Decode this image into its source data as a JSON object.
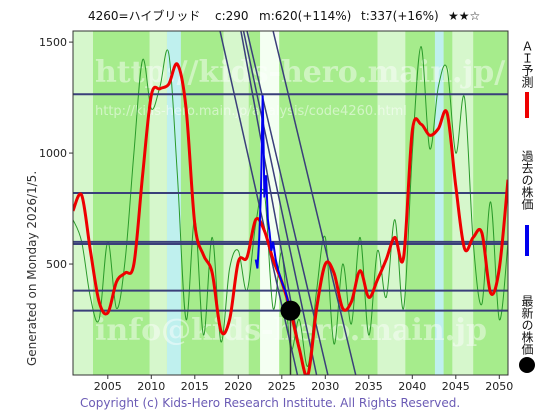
{
  "header": {
    "ticker": "4260=ハイブリッド",
    "current": "c:290",
    "max_info": "m:620(+114%)",
    "target": "t:337(+16%)",
    "rating": "★★☆"
  },
  "side_label": "Generated on Monday 2026/1/5.",
  "copyright": "Copyright (c) Kids-Hero Research Institute. All Rights Reserved.",
  "watermark": {
    "url": "http://kids-hero.main.jp/",
    "sub_url": "http://kids-hero.main.jp/analysis/code4260.html",
    "email": "info@kids-hero.main.jp"
  },
  "legend": [
    {
      "label": "ＡＩ予測",
      "color": "#ee0000"
    },
    {
      "label": "過去の株価",
      "color": "#0000ee"
    },
    {
      "label": "最新の株価",
      "color": "#000000"
    }
  ],
  "colors": {
    "plot_bg": "#a6ec8c",
    "band_light": "#d6f7cc",
    "band_cyan": "#bff0ee",
    "band_white": "#f4fff2",
    "ai_line": "#ee0000",
    "past_line": "#0000ee",
    "trend_lines": "#3a3f7a",
    "horizontal_lines": "#3a3f7a",
    "green_line": "#2a9a2a"
  },
  "chart_data": {
    "type": "line",
    "xlim": [
      2001,
      2051
    ],
    "ylim": [
      0,
      1550
    ],
    "x_ticks": [
      2005,
      2010,
      2015,
      2020,
      2025,
      2030,
      2035,
      2040,
      2045,
      2050
    ],
    "y_ticks": [
      500,
      1000,
      1500
    ],
    "current_point": {
      "x": 2026.0,
      "y": 290
    },
    "horizontal_levels": [
      1265,
      820,
      600,
      590,
      380,
      290
    ],
    "trend_lines": [
      {
        "from": [
          2017.9,
          1550
        ],
        "to": [
          2026.8,
          0
        ]
      },
      {
        "from": [
          2020.3,
          1550
        ],
        "to": [
          2027.6,
          0
        ]
      },
      {
        "from": [
          2020.6,
          1550
        ],
        "to": [
          2029.0,
          0
        ]
      },
      {
        "from": [
          2021.0,
          1550
        ],
        "to": [
          2030.3,
          0
        ]
      },
      {
        "from": [
          2024.0,
          1550
        ],
        "to": [
          2033.5,
          0
        ]
      }
    ],
    "series": [
      {
        "name": "ＡＩ予測",
        "points": [
          [
            2001,
            740
          ],
          [
            2002,
            810
          ],
          [
            2003,
            560
          ],
          [
            2004,
            330
          ],
          [
            2005,
            280
          ],
          [
            2006,
            420
          ],
          [
            2007,
            460
          ],
          [
            2008,
            500
          ],
          [
            2009,
            900
          ],
          [
            2010,
            1260
          ],
          [
            2011,
            1290
          ],
          [
            2012,
            1310
          ],
          [
            2013,
            1400
          ],
          [
            2014,
            1200
          ],
          [
            2015,
            680
          ],
          [
            2016,
            540
          ],
          [
            2017,
            460
          ],
          [
            2018,
            200
          ],
          [
            2019,
            250
          ],
          [
            2020,
            510
          ],
          [
            2021,
            530
          ],
          [
            2022,
            700
          ],
          [
            2023,
            650
          ],
          [
            2024,
            520
          ],
          [
            2025,
            420
          ],
          [
            2026,
            290
          ],
          [
            2027,
            120
          ],
          [
            2028,
            0
          ],
          [
            2029,
            300
          ],
          [
            2030,
            500
          ],
          [
            2031,
            460
          ],
          [
            2032,
            300
          ],
          [
            2033,
            330
          ],
          [
            2034,
            470
          ],
          [
            2035,
            350
          ],
          [
            2036,
            430
          ],
          [
            2037,
            520
          ],
          [
            2038,
            620
          ],
          [
            2039,
            530
          ],
          [
            2040,
            1100
          ],
          [
            2041,
            1130
          ],
          [
            2042,
            1080
          ],
          [
            2043,
            1110
          ],
          [
            2044,
            1180
          ],
          [
            2045,
            850
          ],
          [
            2046,
            570
          ],
          [
            2047,
            620
          ],
          [
            2048,
            640
          ],
          [
            2049,
            370
          ],
          [
            2050,
            480
          ],
          [
            2051,
            880
          ]
        ]
      },
      {
        "name": "過去の株価",
        "points": [
          [
            2022.0,
            520
          ],
          [
            2022.2,
            480
          ],
          [
            2022.4,
            610
          ],
          [
            2022.6,
            820
          ],
          [
            2022.8,
            1260
          ],
          [
            2022.9,
            1050
          ],
          [
            2023.0,
            800
          ],
          [
            2023.2,
            900
          ],
          [
            2023.4,
            700
          ],
          [
            2023.6,
            640
          ],
          [
            2023.8,
            560
          ],
          [
            2024.0,
            600
          ],
          [
            2024.3,
            520
          ],
          [
            2024.6,
            470
          ],
          [
            2025.0,
            420
          ],
          [
            2025.4,
            380
          ],
          [
            2025.8,
            320
          ],
          [
            2026.0,
            290
          ]
        ]
      },
      {
        "name": "green",
        "points": [
          [
            2001,
            700
          ],
          [
            2002,
            600
          ],
          [
            2003,
            350
          ],
          [
            2004,
            250
          ],
          [
            2005,
            600
          ],
          [
            2006,
            300
          ],
          [
            2007,
            520
          ],
          [
            2008,
            1000
          ],
          [
            2009,
            1420
          ],
          [
            2010,
            1200
          ],
          [
            2011,
            1300
          ],
          [
            2012,
            1450
          ],
          [
            2013,
            900
          ],
          [
            2014,
            250
          ],
          [
            2015,
            700
          ],
          [
            2016,
            180
          ],
          [
            2017,
            620
          ],
          [
            2018,
            150
          ],
          [
            2019,
            480
          ],
          [
            2020,
            560
          ],
          [
            2021,
            380
          ],
          [
            2022,
            680
          ],
          [
            2023,
            820
          ],
          [
            2024,
            300
          ],
          [
            2025,
            550
          ],
          [
            2026,
            120
          ],
          [
            2027,
            250
          ],
          [
            2028,
            40
          ],
          [
            2029,
            380
          ],
          [
            2030,
            620
          ],
          [
            2031,
            140
          ],
          [
            2032,
            500
          ],
          [
            2033,
            230
          ],
          [
            2034,
            620
          ],
          [
            2035,
            180
          ],
          [
            2036,
            560
          ],
          [
            2037,
            350
          ],
          [
            2038,
            700
          ],
          [
            2039,
            300
          ],
          [
            2040,
            1000
          ],
          [
            2041,
            1480
          ],
          [
            2042,
            1020
          ],
          [
            2043,
            1300
          ],
          [
            2044,
            1380
          ],
          [
            2045,
            1000
          ],
          [
            2046,
            1250
          ],
          [
            2047,
            600
          ],
          [
            2048,
            320
          ],
          [
            2049,
            780
          ],
          [
            2050,
            250
          ],
          [
            2051,
            600
          ]
        ]
      }
    ],
    "bands": [
      {
        "x0": 2001.0,
        "x1": 2003.3,
        "kind": "light"
      },
      {
        "x0": 2009.8,
        "x1": 2011.8,
        "kind": "light"
      },
      {
        "x0": 2011.8,
        "x1": 2013.4,
        "kind": "cyan"
      },
      {
        "x0": 2018.3,
        "x1": 2021.2,
        "kind": "light"
      },
      {
        "x0": 2022.5,
        "x1": 2024.7,
        "kind": "white"
      },
      {
        "x0": 2036.0,
        "x1": 2039.2,
        "kind": "light"
      },
      {
        "x0": 2042.6,
        "x1": 2043.6,
        "kind": "cyan"
      },
      {
        "x0": 2044.6,
        "x1": 2047.0,
        "kind": "light"
      }
    ]
  }
}
